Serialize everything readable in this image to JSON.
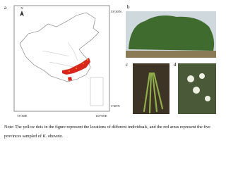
{
  "panels": {
    "a": {
      "label": "a",
      "north": "N",
      "lat_top": "53°30'N",
      "lat_bottom": "3°20'N",
      "lon_left": "73°30'E",
      "lon_right": "135°05'E"
    },
    "b": {
      "label": "b"
    },
    "c": {
      "label": "c"
    },
    "d": {
      "label": "d"
    }
  },
  "note": {
    "before": "Note: The yellow dots in the figure represent the locations of different individuals, and the red areas represent the five provinces sampled of ",
    "species": "K. obovata",
    "after": "."
  }
}
